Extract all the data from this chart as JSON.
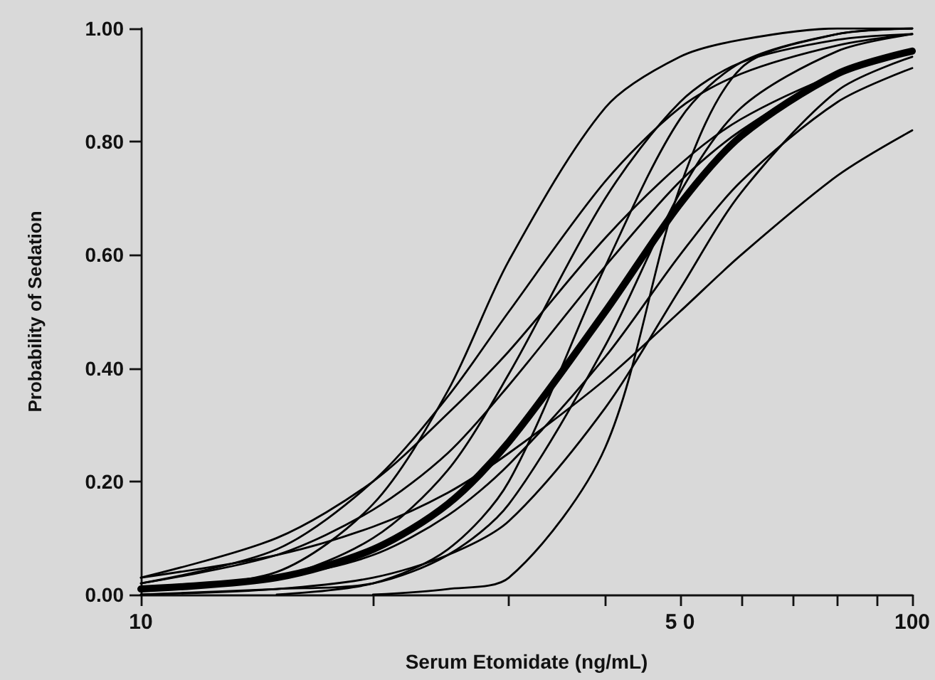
{
  "chart_data": {
    "type": "line",
    "xlabel": "Serum Etomidate (ng/mL)",
    "ylabel": "Probability of Sedation",
    "x": [
      10,
      15,
      20,
      25,
      30,
      40,
      50,
      60,
      80,
      100
    ],
    "series": [
      {
        "color": "#000000",
        "values": [
          0.01,
          0.03,
          0.08,
          0.16,
          0.27,
          0.5,
          0.69,
          0.81,
          0.92,
          0.96
        ]
      },
      {
        "color": "#000000",
        "x": [
          20,
          25,
          30,
          40,
          50,
          60,
          80,
          100
        ],
        "values": [
          0.0,
          0.01,
          0.03,
          0.26,
          0.72,
          0.93,
          0.99,
          1.0
        ]
      },
      {
        "color": "#000000",
        "values": [
          0.02,
          0.08,
          0.2,
          0.35,
          0.5,
          0.73,
          0.86,
          0.92,
          0.97,
          0.99
        ]
      },
      {
        "color": "#000000",
        "values": [
          0.03,
          0.07,
          0.12,
          0.18,
          0.25,
          0.38,
          0.5,
          0.6,
          0.74,
          0.82
        ]
      },
      {
        "color": "#000000",
        "values": [
          0.01,
          0.03,
          0.1,
          0.22,
          0.39,
          0.7,
          0.87,
          0.94,
          0.98,
          0.99
        ]
      },
      {
        "color": "#000000",
        "values": [
          0.02,
          0.07,
          0.15,
          0.25,
          0.37,
          0.58,
          0.73,
          0.82,
          0.92,
          0.96
        ]
      },
      {
        "color": "#000000",
        "values": [
          0.0,
          0.01,
          0.02,
          0.07,
          0.16,
          0.44,
          0.71,
          0.86,
          0.96,
          0.99
        ]
      },
      {
        "color": "#000000",
        "values": [
          0.0,
          0.01,
          0.03,
          0.07,
          0.13,
          0.33,
          0.54,
          0.71,
          0.89,
          0.95
        ]
      },
      {
        "color": "#000000",
        "x": [
          15,
          20,
          25,
          30,
          40,
          50,
          60,
          80,
          100
        ],
        "values": [
          0.0,
          0.02,
          0.08,
          0.2,
          0.58,
          0.84,
          0.94,
          0.99,
          1.0
        ]
      },
      {
        "color": "#000000",
        "values": [
          0.03,
          0.1,
          0.2,
          0.32,
          0.43,
          0.63,
          0.76,
          0.84,
          0.92,
          0.96
        ]
      },
      {
        "color": "#000000",
        "values": [
          0.01,
          0.04,
          0.16,
          0.36,
          0.59,
          0.86,
          0.95,
          0.98,
          1.0,
          1.0
        ]
      },
      {
        "color": "#000000",
        "values": [
          0.01,
          0.03,
          0.07,
          0.14,
          0.23,
          0.42,
          0.6,
          0.73,
          0.87,
          0.93
        ]
      }
    ],
    "log": "x",
    "xlim": [
      10,
      100
    ],
    "xticks": [
      10,
      {
        "value": 20,
        "label": null
      },
      {
        "value": 30,
        "label": null
      },
      {
        "value": 40,
        "label": null
      },
      {
        "value": 50,
        "label": "5 0"
      },
      {
        "value": 60,
        "label": null
      },
      {
        "value": 70,
        "label": null
      },
      {
        "value": 80,
        "label": null
      },
      {
        "value": 90,
        "label": null
      },
      100
    ],
    "ylim": [
      0,
      1
    ],
    "yticks": [
      {
        "value": 0,
        "label": "0.00"
      },
      {
        "value": 0.2,
        "label": "0.20"
      },
      {
        "value": 0.4,
        "label": "0.40"
      },
      {
        "value": 0.6,
        "label": "0.60"
      },
      {
        "value": 0.8,
        "label": "0.80"
      },
      {
        "value": 1,
        "label": "1.00"
      }
    ],
    "grid": false,
    "marker": "none",
    "line_style": "solid"
  }
}
